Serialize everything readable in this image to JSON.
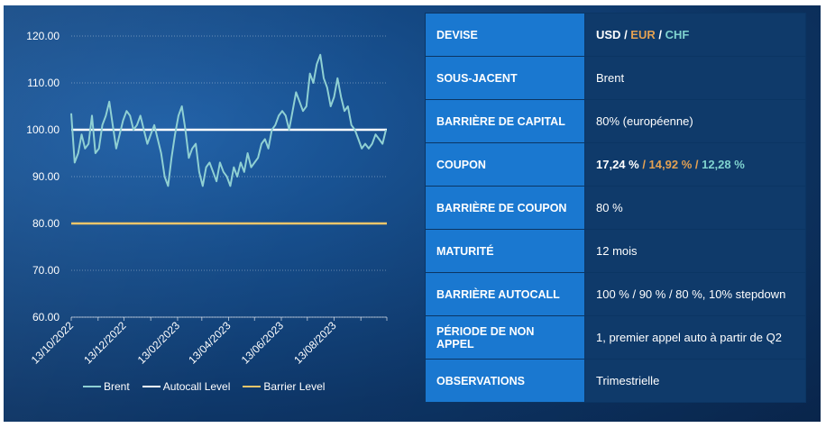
{
  "chart_data": {
    "type": "line",
    "x_tick_labels": [
      "13/10/2022",
      "13/12/2022",
      "13/02/2023",
      "13/04/2023",
      "13/06/2023",
      "13/08/2023"
    ],
    "y_tick_labels": [
      "120.00",
      "110.00",
      "100.00",
      "90.00",
      "80.00",
      "70.00",
      "60.00"
    ],
    "ylim": [
      60,
      120
    ],
    "xlim": [
      "2022-10-13",
      "2023-10-13"
    ],
    "grid": "horizontal dotted",
    "legend_position": "bottom",
    "series": [
      {
        "name": "Brent",
        "color": "#8fd0d3",
        "x": [
          "2022-10-13",
          "2022-10-17",
          "2022-10-21",
          "2022-10-25",
          "2022-10-29",
          "2022-11-02",
          "2022-11-06",
          "2022-11-10",
          "2022-11-14",
          "2022-11-18",
          "2022-11-22",
          "2022-11-26",
          "2022-11-30",
          "2022-12-04",
          "2022-12-08",
          "2022-12-12",
          "2022-12-16",
          "2022-12-20",
          "2022-12-24",
          "2022-12-28",
          "2023-01-01",
          "2023-01-05",
          "2023-01-09",
          "2023-01-13",
          "2023-01-17",
          "2023-01-21",
          "2023-01-25",
          "2023-01-29",
          "2023-02-02",
          "2023-02-06",
          "2023-02-10",
          "2023-02-14",
          "2023-02-18",
          "2023-02-22",
          "2023-02-26",
          "2023-03-02",
          "2023-03-06",
          "2023-03-10",
          "2023-03-14",
          "2023-03-18",
          "2023-03-22",
          "2023-03-26",
          "2023-03-30",
          "2023-04-03",
          "2023-04-07",
          "2023-04-11",
          "2023-04-15",
          "2023-04-19",
          "2023-04-23",
          "2023-04-27",
          "2023-05-01",
          "2023-05-05",
          "2023-05-09",
          "2023-05-13",
          "2023-05-17",
          "2023-05-21",
          "2023-05-25",
          "2023-05-29",
          "2023-06-02",
          "2023-06-06",
          "2023-06-10",
          "2023-06-14",
          "2023-06-18",
          "2023-06-22",
          "2023-06-26",
          "2023-06-30",
          "2023-07-04",
          "2023-07-08",
          "2023-07-12",
          "2023-07-16",
          "2023-07-20",
          "2023-07-24",
          "2023-07-28",
          "2023-08-01",
          "2023-08-05",
          "2023-08-09",
          "2023-08-13",
          "2023-08-17",
          "2023-08-21",
          "2023-08-25",
          "2023-08-29",
          "2023-09-02",
          "2023-09-06",
          "2023-09-10",
          "2023-09-14",
          "2023-09-18",
          "2023-09-22",
          "2023-09-26",
          "2023-09-30",
          "2023-10-04",
          "2023-10-08",
          "2023-10-12"
        ],
        "values": [
          103.5,
          93,
          95,
          99,
          96,
          97,
          103,
          95,
          96,
          101,
          103,
          106,
          101,
          96,
          99,
          102,
          104,
          103,
          100,
          101,
          103,
          100,
          97,
          99,
          101,
          98,
          95,
          90,
          88,
          94,
          99,
          103,
          105,
          100,
          94,
          96,
          97,
          91,
          88,
          92,
          93,
          91,
          89,
          93,
          91,
          90,
          88,
          92,
          90,
          93,
          91,
          95,
          92,
          93,
          94,
          97,
          98,
          96,
          100,
          101,
          103,
          104,
          103,
          100,
          104,
          108,
          106,
          104,
          105,
          112,
          110,
          114,
          116,
          111,
          109,
          105,
          107,
          111,
          107,
          104,
          105,
          101,
          100,
          98,
          96,
          97,
          96,
          97,
          99,
          98,
          97,
          100
        ]
      },
      {
        "name": "Autocall Level",
        "color": "#ffffff",
        "value": 100
      },
      {
        "name": "Barrier Level",
        "color": "#f0c66a",
        "value": 80
      }
    ]
  },
  "legend": {
    "brent": "Brent",
    "autocall": "Autocall Level",
    "barrier": "Barrier Level"
  },
  "table": {
    "devise": {
      "label": "DEVISE",
      "usd": "USD",
      "eur": "EUR",
      "chf": "CHF"
    },
    "sous_jacent": {
      "label": "SOUS-JACENT",
      "value": "Brent"
    },
    "barriere_capital": {
      "label": "BARRIÈRE DE CAPITAL",
      "value": "80% (européenne)"
    },
    "coupon": {
      "label": "COUPON",
      "usd": "17,24 %",
      "eur": "14,92 %",
      "chf": "12,28 %"
    },
    "barriere_coupon": {
      "label": "BARRIÈRE DE COUPON",
      "value": "80 %"
    },
    "maturite": {
      "label": "MATURITÉ",
      "value": "12 mois"
    },
    "barriere_autocall": {
      "label": "BARRIÈRE AUTOCALL",
      "value": "100 % / 90 % / 80 %, 10% stepdown"
    },
    "periode_non_appel": {
      "label": "PÉRIODE DE NON APPEL",
      "value": "1, premier appel auto à partir de Q2"
    },
    "observations": {
      "label": "OBSERVATIONS",
      "value": "Trimestrielle"
    }
  }
}
